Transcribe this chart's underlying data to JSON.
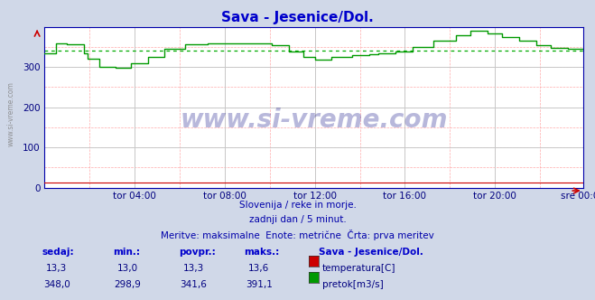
{
  "title": "Sava - Jesenice/Dol.",
  "title_color": "#0000cc",
  "bg_color": "#d0d8e8",
  "plot_bg_color": "#ffffff",
  "watermark": "www.si-vreme.com",
  "subtitle1": "Slovenija / reke in morje.",
  "subtitle2": "zadnji dan / 5 minut.",
  "subtitle3": "Meritve: maksimalne  Enote: metrične  Črta: prva meritev",
  "legend_title": "Sava - Jesenice/Dol.",
  "legend_items": [
    {
      "label": "temperatura[C]",
      "color": "#cc0000"
    },
    {
      "label": "pretok[m3/s]",
      "color": "#00aa00"
    }
  ],
  "table_headers": [
    "sedaj:",
    "min.:",
    "povpr.:",
    "maks.:"
  ],
  "table_rows": [
    {
      "values": [
        "13,3",
        "13,0",
        "13,3",
        "13,6"
      ]
    },
    {
      "values": [
        "348,0",
        "298,9",
        "341,6",
        "391,1"
      ]
    }
  ],
  "xtick_labels": [
    "tor 04:00",
    "tor 08:00",
    "tor 12:00",
    "tor 16:00",
    "tor 20:00",
    "sre 00:00"
  ],
  "xtick_positions": [
    48,
    96,
    144,
    192,
    240,
    287
  ],
  "ytick_values": [
    0,
    100,
    200,
    300
  ],
  "ymax": 400,
  "ymin": 0,
  "avg_flow": 341.6,
  "n_points": 288,
  "flow_min": 298.9,
  "flow_max": 391.1,
  "flow_avg": 341.6,
  "temp_val": 13.3
}
